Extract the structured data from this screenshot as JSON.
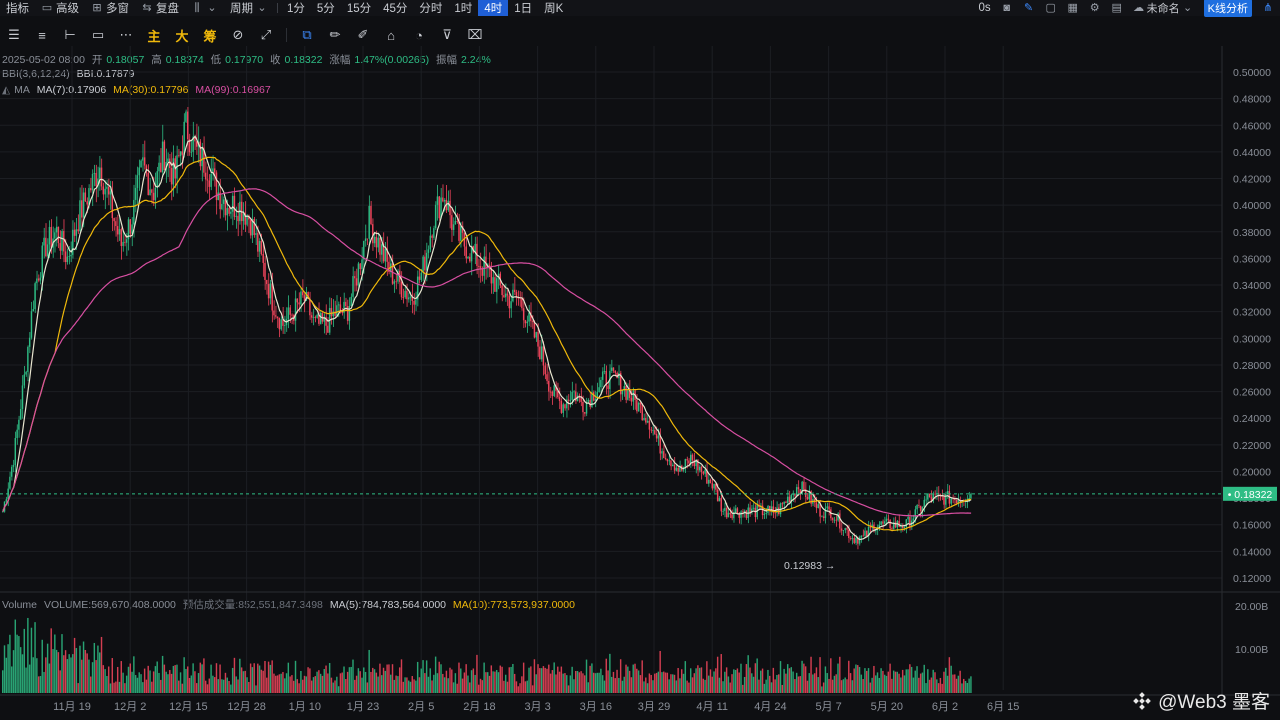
{
  "topbar": {
    "left_items": [
      {
        "label": "指标",
        "icon": ""
      },
      {
        "label": "高级",
        "icon": "window-icon"
      },
      {
        "label": "多窗",
        "icon": "grid-icon"
      },
      {
        "label": "复盘",
        "icon": "replay-icon"
      },
      {
        "label": "",
        "icon": "candle-type-icon"
      },
      {
        "label": "周期",
        "icon": "chevron-down-icon"
      }
    ],
    "intervals": [
      "1分",
      "5分",
      "15分",
      "45分",
      "分时",
      "1时",
      "4时",
      "1日",
      "周K"
    ],
    "active_interval": "4时",
    "right": {
      "timer": "0s",
      "layout_name": "未命名",
      "analysis_button": "K线分析"
    }
  },
  "toolbar": {
    "labels": [
      "主",
      "大",
      "筹"
    ]
  },
  "info": {
    "date": "2025-05-02 08:00",
    "open_label": "开",
    "open": "0.18057",
    "high_label": "高",
    "high": "0.18374",
    "low_label": "低",
    "low": "0.17970",
    "close_label": "收",
    "close": "0.18322",
    "change_label": "涨幅",
    "change": "1.47%(0.00265)",
    "amp_label": "振幅",
    "amp": "2.24%",
    "bbi": "BBI(3,6,12,24)",
    "bbi_value": "BBI:0.17879",
    "ma_label": "MA",
    "ma7": "MA(7):0.17906",
    "ma30": "MA(30):0.17796",
    "ma99": "MA(99):0.16967"
  },
  "volume_info": {
    "label": "Volume",
    "volume": "VOLUME:569,670,408.0000",
    "est": "预估成交量:852,551,847.3498",
    "ma5": "MA(5):784,783,564.0000",
    "ma10": "MA(10):773,573,937.0000"
  },
  "watermark": "@Web3 墨客",
  "colors": {
    "up": "#2ebd85",
    "down": "#f6465d",
    "ma7": "#f0b90b",
    "ma30": "#f0b90b",
    "ma99": "#d84fa2",
    "current_price_bg": "#2ebd85"
  },
  "chart_data": {
    "type": "candlestick",
    "y_ticks": [
      "0.50000",
      "0.48000",
      "0.46000",
      "0.44000",
      "0.42000",
      "0.40000",
      "0.38000",
      "0.36000",
      "0.34000",
      "0.32000",
      "0.30000",
      "0.28000",
      "0.26000",
      "0.24000",
      "0.22000",
      "0.20000",
      "0.18000",
      "0.16000",
      "0.14000",
      "0.12000"
    ],
    "ylim": [
      0.12,
      0.5
    ],
    "x_ticks": [
      "11月 19",
      "12月 2",
      "12月 15",
      "12月 28",
      "1月 10",
      "1月 23",
      "2月 5",
      "2月 18",
      "3月 3",
      "3月 16",
      "3月 29",
      "4月 11",
      "4月 24",
      "5月 7",
      "5月 20",
      "6月 2",
      "6月 15"
    ],
    "current_price": "0.18322",
    "min_label": "0.12983",
    "min_value": 0.12983,
    "volume_ticks": [
      "20.00B",
      "10.00B"
    ],
    "close_path": [
      0.17,
      0.21,
      0.27,
      0.34,
      0.37,
      0.38,
      0.36,
      0.39,
      0.41,
      0.43,
      0.4,
      0.37,
      0.39,
      0.43,
      0.41,
      0.44,
      0.42,
      0.46,
      0.44,
      0.43,
      0.41,
      0.4,
      0.4,
      0.39,
      0.36,
      0.33,
      0.31,
      0.32,
      0.33,
      0.31,
      0.31,
      0.32,
      0.32,
      0.35,
      0.39,
      0.37,
      0.35,
      0.34,
      0.33,
      0.35,
      0.39,
      0.41,
      0.38,
      0.37,
      0.36,
      0.35,
      0.34,
      0.33,
      0.33,
      0.31,
      0.29,
      0.26,
      0.25,
      0.26,
      0.25,
      0.26,
      0.27,
      0.27,
      0.26,
      0.25,
      0.24,
      0.22,
      0.21,
      0.2,
      0.21,
      0.2,
      0.19,
      0.17,
      0.17,
      0.17,
      0.17,
      0.17,
      0.17,
      0.18,
      0.19,
      0.18,
      0.17,
      0.17,
      0.16,
      0.15,
      0.15,
      0.16,
      0.16,
      0.16,
      0.16,
      0.17,
      0.18,
      0.18,
      0.18,
      0.18,
      0.183
    ]
  }
}
